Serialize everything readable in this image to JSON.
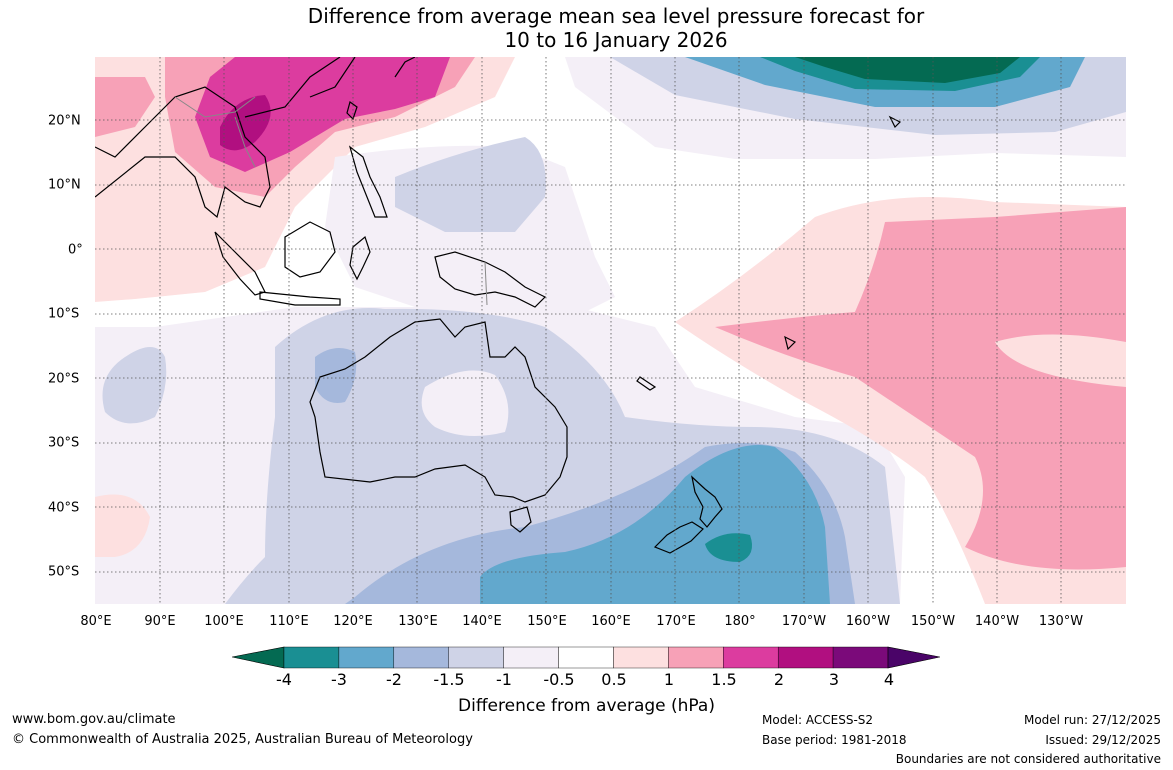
{
  "title_line1": "Difference from average mean sea level pressure forecast for",
  "title_line2": "10 to 16 January 2026",
  "lon_ticks": [
    "80°E",
    "90°E",
    "100°E",
    "110°E",
    "120°E",
    "130°E",
    "140°E",
    "150°E",
    "160°E",
    "170°E",
    "180°",
    "170°W",
    "160°W",
    "150°W",
    "140°W",
    "130°W"
  ],
  "lat_ticks": [
    "20°N",
    "10°N",
    "0°",
    "10°S",
    "20°S",
    "30°S",
    "40°S",
    "50°S"
  ],
  "colorbar": {
    "labels": [
      "-4",
      "-3",
      "-2",
      "-1.5",
      "-1",
      "-0.5",
      "0.5",
      "1",
      "1.5",
      "2",
      "3",
      "4"
    ],
    "colors": [
      "#046a52",
      "#1a8f93",
      "#62a8cd",
      "#a5b8dc",
      "#cfd3e7",
      "#f4eff7",
      "#ffffff",
      "#fde0e0",
      "#f7a1b7",
      "#dc3c9f",
      "#b10f80",
      "#7b0a7a",
      "#4a0468"
    ],
    "title": "Difference from average (hPa)"
  },
  "footer": {
    "website": "www.bom.gov.au/climate",
    "copyright": "© Commonwealth of Australia 2025, Australian Bureau of Meteorology",
    "model": "Model: ACCESS-S2",
    "base_period": "Base period: 1981-2018",
    "model_run": "Model run: 27/12/2025",
    "issued": "Issued: 29/12/2025",
    "disclaimer": "Boundaries are not considered authoritative"
  }
}
